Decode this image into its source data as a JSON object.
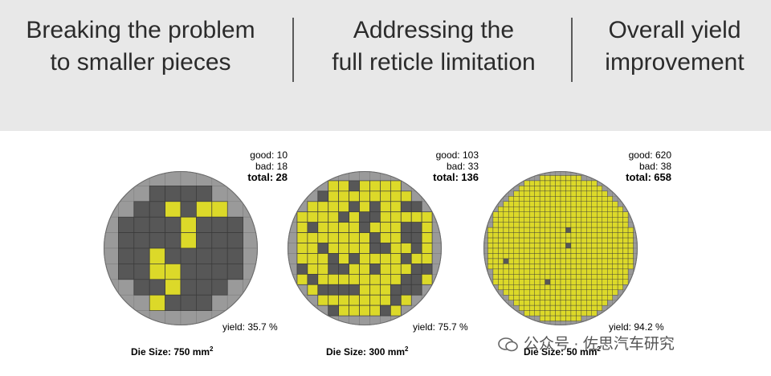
{
  "header": {
    "columns": [
      {
        "line1": "Breaking the problem",
        "line2": "to smaller pieces"
      },
      {
        "line1": "Addressing the",
        "line2": "full reticle limitation"
      },
      {
        "line1": "Overall yield",
        "line2": "improvement"
      }
    ]
  },
  "wafers": [
    {
      "good_label": "good: 10",
      "bad_label": "bad: 18",
      "total_label": "total:",
      "total_value": "28",
      "yield_label": "yield: 35.7 %",
      "die_size_label": "Die Size: 750 mm",
      "die_size_sup": "2",
      "good": 10,
      "bad": 18,
      "total": 28,
      "yield": 35.7,
      "grid": 10
    },
    {
      "good_label": "good: 103",
      "bad_label": "bad: 33",
      "total_label": "total:",
      "total_value": "136",
      "yield_label": "yield: 75.7 %",
      "die_size_label": "Die Size: 300 mm",
      "die_size_sup": "2",
      "good": 103,
      "bad": 33,
      "total": 136,
      "yield": 75.7,
      "grid": 15
    },
    {
      "good_label": "good: 620",
      "bad_label": "bad: 38",
      "total_label": "total:",
      "total_value": "658",
      "yield_label": "yield: 94.2 %",
      "die_size_label": "Die Size: 50 mm",
      "die_size_sup": "2",
      "good": 620,
      "bad": 38,
      "total": 658,
      "yield": 94.2,
      "grid": 30
    }
  ],
  "colors": {
    "good": "#dcd929",
    "bad": "#575757",
    "edge": "#9a9a9a",
    "header_bg": "#e8e8e8"
  },
  "watermark": {
    "text": "公众号 · 佐思汽车研究"
  }
}
